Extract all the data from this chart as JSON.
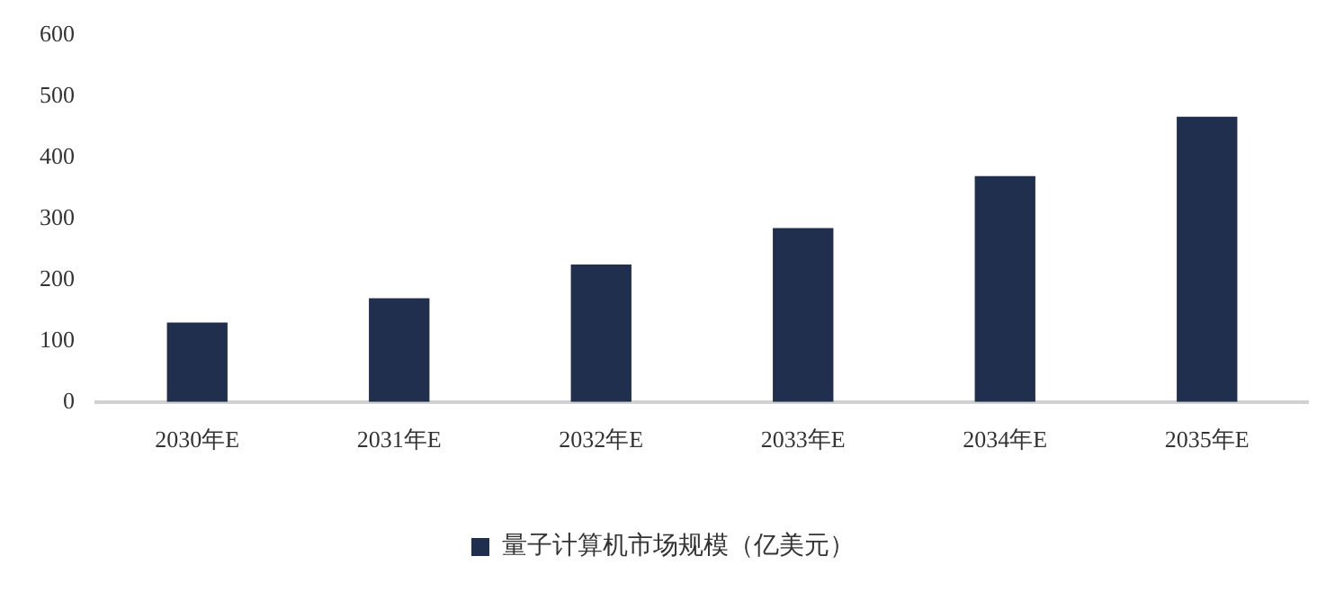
{
  "chart_data": {
    "type": "bar",
    "categories": [
      "2030年E",
      "2031年E",
      "2032年E",
      "2033年E",
      "2034年E",
      "2035年E"
    ],
    "series": [
      {
        "name": "量子计算机市场规模（亿美元）",
        "color": "#1f2f4d",
        "values": [
          130,
          170,
          225,
          285,
          370,
          467
        ]
      }
    ],
    "ylim": [
      0,
      600
    ],
    "yticks": [
      0,
      100,
      200,
      300,
      400,
      500,
      600
    ],
    "grid": false,
    "legend": "bottom"
  }
}
